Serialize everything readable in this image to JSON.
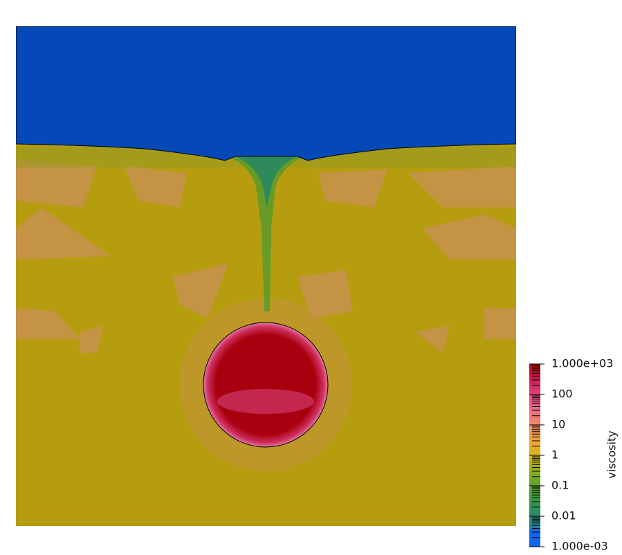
{
  "colorbar": {
    "title": "viscosity",
    "range": [
      0.001,
      1000
    ],
    "log_scale": true,
    "ticks": [
      {
        "value": 1000,
        "label": "1.000e+03"
      },
      100,
      10,
      1,
      0.1,
      0.01,
      {
        "value": 0.001,
        "label": "1.000e-03"
      }
    ]
  }
}
